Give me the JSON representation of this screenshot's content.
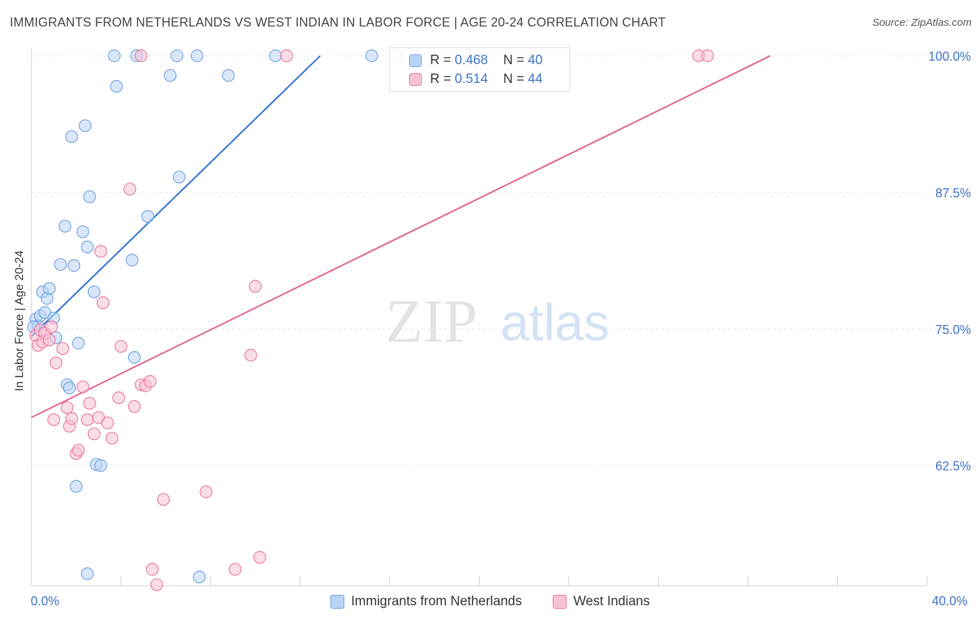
{
  "header": {
    "title": "IMMIGRANTS FROM NETHERLANDS VS WEST INDIAN IN LABOR FORCE | AGE 20-24 CORRELATION CHART",
    "source": "Source: ZipAtlas.com"
  },
  "watermark": {
    "zip": "ZIP",
    "atlas": "atlas"
  },
  "legend": {
    "rows": [
      {
        "r_label": "R =",
        "r_value": "0.468",
        "n_label": "N =",
        "n_value": "40"
      },
      {
        "r_label": "R =",
        "r_value": "0.514",
        "n_label": "N =",
        "n_value": "44"
      }
    ]
  },
  "colors": {
    "blue": "#6fa3e0",
    "blue_fill": "#b9d3f4",
    "pink": "#e8779e",
    "pink_fill": "#f6c3d4",
    "tick_text": "#3d74c8"
  },
  "chart_data": {
    "type": "scatter",
    "title": "IMMIGRANTS FROM NETHERLANDS VS WEST INDIAN IN LABOR FORCE | AGE 20-24 CORRELATION CHART",
    "xlabel": "",
    "ylabel": "In Labor Force | Age 20-24",
    "xlim": [
      0,
      40
    ],
    "ylim": [
      51.5,
      100
    ],
    "x_tick_labels": [
      "0.0%",
      "40.0%"
    ],
    "y_ticks": [
      62.5,
      75.0,
      87.5,
      100.0
    ],
    "y_tick_labels": [
      "62.5%",
      "75.0%",
      "87.5%",
      "100.0%"
    ],
    "grid": true,
    "series": [
      {
        "name": "Immigrants from Netherlands",
        "color": "#6fa3e0",
        "points": [
          [
            0.2,
            75.9
          ],
          [
            0.3,
            75.3
          ],
          [
            0.4,
            76.2
          ],
          [
            0.5,
            78.4
          ],
          [
            0.6,
            76.5
          ],
          [
            0.7,
            77.8
          ],
          [
            0.8,
            78.7
          ],
          [
            1.0,
            76.0
          ],
          [
            1.1,
            74.2
          ],
          [
            1.3,
            80.9
          ],
          [
            1.5,
            84.4
          ],
          [
            1.6,
            69.9
          ],
          [
            1.7,
            69.6
          ],
          [
            1.8,
            92.6
          ],
          [
            1.9,
            80.8
          ],
          [
            2.0,
            60.6
          ],
          [
            2.1,
            73.7
          ],
          [
            2.3,
            83.9
          ],
          [
            2.4,
            93.6
          ],
          [
            2.5,
            82.5
          ],
          [
            2.6,
            87.1
          ],
          [
            2.8,
            78.4
          ],
          [
            2.9,
            62.6
          ],
          [
            3.1,
            62.5
          ],
          [
            3.7,
            100.0
          ],
          [
            3.8,
            97.2
          ],
          [
            4.5,
            81.3
          ],
          [
            4.6,
            72.4
          ],
          [
            4.7,
            100.0
          ],
          [
            5.2,
            85.3
          ],
          [
            6.2,
            98.2
          ],
          [
            6.5,
            100.0
          ],
          [
            6.6,
            88.9
          ],
          [
            7.4,
            100.0
          ],
          [
            8.8,
            98.2
          ],
          [
            10.9,
            100.0
          ],
          [
            15.2,
            100.0
          ],
          [
            2.5,
            52.6
          ],
          [
            7.5,
            52.3
          ],
          [
            0.1,
            75.2
          ]
        ]
      },
      {
        "name": "West Indians",
        "color": "#e8779e",
        "points": [
          [
            0.2,
            74.4
          ],
          [
            0.3,
            73.5
          ],
          [
            0.4,
            74.9
          ],
          [
            0.5,
            73.8
          ],
          [
            0.6,
            74.6
          ],
          [
            0.8,
            74.0
          ],
          [
            0.9,
            75.2
          ],
          [
            1.0,
            66.7
          ],
          [
            1.1,
            71.9
          ],
          [
            1.4,
            73.2
          ],
          [
            1.6,
            67.8
          ],
          [
            1.7,
            66.1
          ],
          [
            1.8,
            66.8
          ],
          [
            2.0,
            63.6
          ],
          [
            2.1,
            63.9
          ],
          [
            2.3,
            69.7
          ],
          [
            2.5,
            66.7
          ],
          [
            2.6,
            68.2
          ],
          [
            2.8,
            65.4
          ],
          [
            3.0,
            66.9
          ],
          [
            3.1,
            82.1
          ],
          [
            3.2,
            77.4
          ],
          [
            3.4,
            66.4
          ],
          [
            3.6,
            65.0
          ],
          [
            3.9,
            68.7
          ],
          [
            4.0,
            73.4
          ],
          [
            4.4,
            87.8
          ],
          [
            4.6,
            67.9
          ],
          [
            4.9,
            100.0
          ],
          [
            4.9,
            69.9
          ],
          [
            5.1,
            69.8
          ],
          [
            5.3,
            70.2
          ],
          [
            5.4,
            53.0
          ],
          [
            5.6,
            51.6
          ],
          [
            5.9,
            59.4
          ],
          [
            7.8,
            60.1
          ],
          [
            9.1,
            53.0
          ],
          [
            9.8,
            72.6
          ],
          [
            10.0,
            78.9
          ],
          [
            10.2,
            54.1
          ],
          [
            11.4,
            100.0
          ],
          [
            16.3,
            100.0
          ],
          [
            29.8,
            100.0
          ],
          [
            30.2,
            100.0
          ]
        ]
      }
    ],
    "trend_lines": [
      {
        "name": "Immigrants from Netherlands",
        "x": [
          0.0,
          12.9
        ],
        "y": [
          74.3,
          100.0
        ]
      },
      {
        "name": "West Indians",
        "x": [
          0.0,
          33.0
        ],
        "y": [
          66.9,
          100.0
        ]
      }
    ]
  }
}
